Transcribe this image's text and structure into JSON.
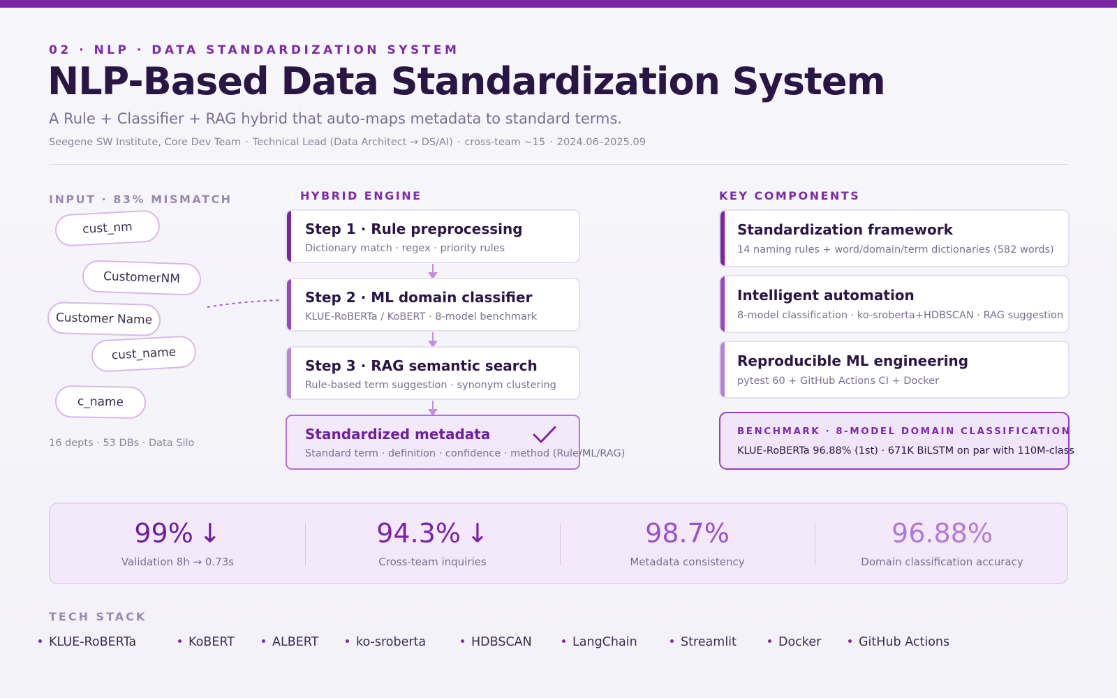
{
  "header": {
    "eyebrow": "02 · NLP · DATA STANDARDIZATION SYSTEM",
    "title": "NLP-Based Data Standardization System",
    "subtitle": "A Rule + Classifier + RAG hybrid that auto-maps metadata to standard terms.",
    "meta": [
      "Seegene SW Institute, Core Dev Team",
      "Technical Lead (Data Architect → DS/AI)",
      "cross-team ~15",
      "2024.06–2025.09"
    ],
    "meta_sep": "·"
  },
  "input": {
    "label": "INPUT · 83% MISMATCH",
    "pills": [
      "cust_nm",
      "CustomerNM",
      "Customer Name",
      "cust_name",
      "c_name"
    ],
    "footer": "16 depts · 53 DBs · Data Silo"
  },
  "engine": {
    "label": "HYBRID ENGINE",
    "steps": [
      {
        "title": "Step 1 · Rule preprocessing",
        "desc": "Dictionary match · regex · priority rules"
      },
      {
        "title": "Step 2 · ML domain classifier",
        "desc": "KLUE-RoBERTa / KoBERT · 8-model benchmark"
      },
      {
        "title": "Step 3 · RAG semantic search",
        "desc": "Rule-based term suggestion · synonym clustering"
      }
    ],
    "result": {
      "title": "Standardized metadata",
      "desc": "Standard term · definition · confidence · method (Rule/ML/RAG)",
      "icon": "check-icon"
    }
  },
  "components": {
    "label": "KEY COMPONENTS",
    "items": [
      {
        "title": "Standardization framework",
        "desc": "14 naming rules + word/domain/term dictionaries (582 words)"
      },
      {
        "title": "Intelligent automation",
        "desc": "8-model classification · ko-sroberta+HDBSCAN · RAG suggestion"
      },
      {
        "title": "Reproducible ML engineering",
        "desc": "pytest 60 + GitHub Actions CI + Docker"
      }
    ],
    "benchmark": {
      "title": "BENCHMARK · 8-MODEL DOMAIN CLASSIFICATION",
      "desc": "KLUE-RoBERTa 96.88% (1st) · 671K BiLSTM on par with 110M-class"
    }
  },
  "stats": [
    {
      "value": "99%",
      "arrow": "↓",
      "label": "Validation 8h → 0.73s",
      "color": "#6e1fa0"
    },
    {
      "value": "94.3%",
      "arrow": "↓",
      "label": "Cross-team inquiries",
      "color": "#7a22a8"
    },
    {
      "value": "98.7%",
      "arrow": "",
      "label": "Metadata consistency",
      "color": "#9a52c8"
    },
    {
      "value": "96.88%",
      "arrow": "",
      "label": "Domain classification accuracy",
      "color": "#b27ad8"
    }
  ],
  "tech": {
    "label": "TECH STACK",
    "items": [
      "KLUE-RoBERTa",
      "KoBERT",
      "ALBERT",
      "ko-sroberta",
      "HDBSCAN",
      "LangChain",
      "Streamlit",
      "Docker",
      "GitHub Actions"
    ]
  },
  "colors": {
    "accent": "#7c22a6",
    "title": "#2a1645",
    "muted": "#7a6f90"
  }
}
